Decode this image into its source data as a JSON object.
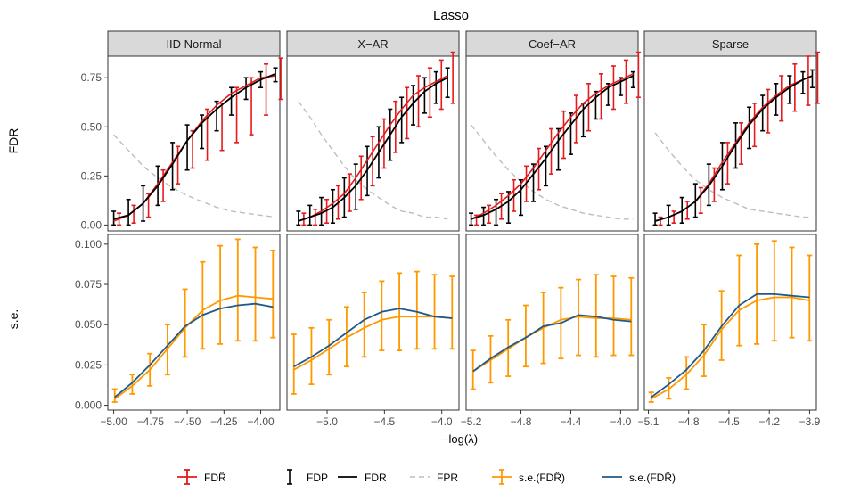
{
  "chart_data": {
    "type": "line",
    "title": "Lasso",
    "xlabel": "−log(λ)",
    "row_labels": [
      "FDR",
      "s.e."
    ],
    "panels": [
      "IID Normal",
      "X−AR",
      "Coef−AR",
      "Sparse"
    ],
    "x_ticks": [
      [
        "−5.00",
        "−4.75",
        "−4.50",
        "−4.25",
        "−4.00"
      ],
      [
        "−5.0",
        "−4.5",
        "−4.0"
      ],
      [
        "−5.2",
        "−4.8",
        "−4.4",
        "−4.0"
      ],
      [
        "−5.1",
        "−4.8",
        "−4.5",
        "−4.2",
        "−3.9"
      ]
    ],
    "y_ticks": {
      "FDR": [
        "0.00",
        "0.25",
        "0.50",
        "0.75"
      ],
      "se": [
        "0.000",
        "0.025",
        "0.050",
        "0.075",
        "0.100"
      ]
    },
    "legend": [
      {
        "key": "fdr_hat",
        "label": "FDR̂",
        "color": "#e41a1c"
      },
      {
        "key": "fdp",
        "label": "FDP",
        "color": "#000000"
      },
      {
        "key": "fdr",
        "label": "FDR",
        "color": "#000000"
      },
      {
        "key": "fpr",
        "label": "FPR",
        "color": "#bdbdbd"
      },
      {
        "key": "se_hat",
        "label": "s.e.(FDR̂)",
        "color": "#ff9900"
      },
      {
        "key": "se_true",
        "label": "s.e.(FDR̂)",
        "color": "#1f5a8a"
      }
    ],
    "data": [
      {
        "xlim": [
          -5.04,
          -3.87
        ],
        "x": [
          -5.0,
          -4.9,
          -4.8,
          -4.7,
          -4.6,
          -4.5,
          -4.4,
          -4.3,
          -4.2,
          -4.1,
          -4.0,
          -3.9
        ],
        "fdr": [
          0.03,
          0.05,
          0.11,
          0.2,
          0.31,
          0.43,
          0.52,
          0.59,
          0.65,
          0.7,
          0.74,
          0.77
        ],
        "fdp_lo": [
          0.0,
          0.0,
          0.02,
          0.1,
          0.18,
          0.28,
          0.39,
          0.48,
          0.56,
          0.64,
          0.7,
          0.73
        ],
        "fdp_hi": [
          0.07,
          0.13,
          0.2,
          0.3,
          0.42,
          0.51,
          0.56,
          0.63,
          0.7,
          0.75,
          0.78,
          0.8
        ],
        "fdr_hat": [
          0.02,
          0.05,
          0.11,
          0.21,
          0.32,
          0.43,
          0.53,
          0.61,
          0.67,
          0.71,
          0.75,
          0.76
        ],
        "fdr_hat_lo": [
          0.0,
          0.01,
          0.04,
          0.12,
          0.21,
          0.29,
          0.33,
          0.38,
          0.42,
          0.46,
          0.56,
          0.64
        ],
        "fdr_hat_hi": [
          0.06,
          0.1,
          0.16,
          0.28,
          0.4,
          0.48,
          0.59,
          0.62,
          0.7,
          0.75,
          0.82,
          0.85
        ],
        "fpr": [
          0.46,
          0.38,
          0.3,
          0.24,
          0.19,
          0.15,
          0.12,
          0.09,
          0.07,
          0.06,
          0.05,
          0.04
        ],
        "se_true": [
          0.005,
          0.014,
          0.025,
          0.037,
          0.049,
          0.056,
          0.06,
          0.062,
          0.063,
          0.061
        ],
        "se_hat": [
          0.004,
          0.012,
          0.022,
          0.035,
          0.048,
          0.059,
          0.065,
          0.068,
          0.067,
          0.066
        ],
        "se_hat_lo": [
          0.002,
          0.007,
          0.012,
          0.019,
          0.03,
          0.035,
          0.038,
          0.04,
          0.04,
          0.042
        ],
        "se_hat_hi": [
          0.01,
          0.019,
          0.032,
          0.05,
          0.072,
          0.089,
          0.099,
          0.103,
          0.098,
          0.096
        ]
      },
      {
        "xlim": [
          -5.35,
          -3.85
        ],
        "x": [
          -5.25,
          -5.15,
          -5.05,
          -4.95,
          -4.85,
          -4.75,
          -4.65,
          -4.55,
          -4.45,
          -4.35,
          -4.25,
          -4.15,
          -4.05,
          -3.95
        ],
        "fdr": [
          0.02,
          0.04,
          0.06,
          0.09,
          0.14,
          0.2,
          0.28,
          0.37,
          0.46,
          0.55,
          0.62,
          0.68,
          0.72,
          0.75
        ],
        "fdp_lo": [
          0.0,
          0.0,
          0.0,
          0.01,
          0.04,
          0.08,
          0.15,
          0.24,
          0.33,
          0.42,
          0.51,
          0.57,
          0.62,
          0.65
        ],
        "fdp_hi": [
          0.07,
          0.1,
          0.14,
          0.18,
          0.24,
          0.31,
          0.4,
          0.5,
          0.59,
          0.65,
          0.71,
          0.75,
          0.78,
          0.8
        ],
        "fdr_hat": [
          0.02,
          0.04,
          0.07,
          0.11,
          0.16,
          0.24,
          0.33,
          0.42,
          0.51,
          0.59,
          0.66,
          0.7,
          0.73,
          0.76
        ],
        "fdr_hat_lo": [
          0.0,
          0.0,
          0.01,
          0.03,
          0.07,
          0.13,
          0.2,
          0.29,
          0.37,
          0.44,
          0.5,
          0.55,
          0.59,
          0.62
        ],
        "fdr_hat_hi": [
          0.06,
          0.08,
          0.13,
          0.2,
          0.26,
          0.35,
          0.45,
          0.54,
          0.63,
          0.7,
          0.76,
          0.8,
          0.84,
          0.88
        ],
        "fpr": [
          0.63,
          0.55,
          0.46,
          0.38,
          0.3,
          0.23,
          0.18,
          0.14,
          0.1,
          0.07,
          0.06,
          0.04,
          0.04,
          0.03
        ],
        "se_true": [
          0.024,
          0.03,
          0.037,
          0.045,
          0.053,
          0.058,
          0.06,
          0.058,
          0.055,
          0.054
        ],
        "se_hat": [
          0.022,
          0.028,
          0.035,
          0.042,
          0.048,
          0.053,
          0.055,
          0.055,
          0.055,
          0.054
        ],
        "se_hat_lo": [
          0.007,
          0.013,
          0.019,
          0.024,
          0.03,
          0.034,
          0.034,
          0.035,
          0.035,
          0.035
        ],
        "se_hat_hi": [
          0.044,
          0.048,
          0.053,
          0.061,
          0.07,
          0.077,
          0.082,
          0.083,
          0.081,
          0.08
        ]
      },
      {
        "xlim": [
          -5.24,
          -3.86
        ],
        "x": [
          -5.2,
          -5.1,
          -5.0,
          -4.9,
          -4.8,
          -4.7,
          -4.6,
          -4.5,
          -4.4,
          -4.3,
          -4.2,
          -4.1,
          -4.0,
          -3.9
        ],
        "fdr": [
          0.03,
          0.05,
          0.08,
          0.12,
          0.18,
          0.26,
          0.34,
          0.43,
          0.51,
          0.59,
          0.65,
          0.7,
          0.73,
          0.76
        ],
        "fdp_lo": [
          0.0,
          0.0,
          0.0,
          0.01,
          0.05,
          0.12,
          0.2,
          0.28,
          0.36,
          0.45,
          0.54,
          0.61,
          0.66,
          0.7
        ],
        "fdp_hi": [
          0.06,
          0.09,
          0.13,
          0.17,
          0.23,
          0.31,
          0.4,
          0.49,
          0.57,
          0.62,
          0.68,
          0.72,
          0.75,
          0.78
        ],
        "fdr_hat": [
          0.03,
          0.06,
          0.1,
          0.15,
          0.21,
          0.29,
          0.38,
          0.47,
          0.55,
          0.62,
          0.67,
          0.71,
          0.74,
          0.77
        ],
        "fdr_hat_lo": [
          0.0,
          0.01,
          0.03,
          0.07,
          0.12,
          0.18,
          0.26,
          0.34,
          0.42,
          0.48,
          0.54,
          0.59,
          0.62,
          0.65
        ],
        "fdr_hat_hi": [
          0.05,
          0.1,
          0.16,
          0.23,
          0.3,
          0.39,
          0.49,
          0.58,
          0.66,
          0.72,
          0.77,
          0.81,
          0.84,
          0.88
        ],
        "fpr": [
          0.51,
          0.43,
          0.35,
          0.28,
          0.22,
          0.17,
          0.13,
          0.1,
          0.08,
          0.06,
          0.05,
          0.04,
          0.03,
          0.03
        ],
        "se_true": [
          0.021,
          0.029,
          0.036,
          0.042,
          0.049,
          0.051,
          0.056,
          0.055,
          0.053,
          0.052
        ],
        "se_hat": [
          0.021,
          0.028,
          0.035,
          0.042,
          0.048,
          0.053,
          0.055,
          0.054,
          0.054,
          0.053
        ],
        "se_hat_lo": [
          0.01,
          0.014,
          0.018,
          0.024,
          0.026,
          0.029,
          0.031,
          0.03,
          0.031,
          0.031
        ],
        "se_hat_hi": [
          0.034,
          0.043,
          0.053,
          0.062,
          0.07,
          0.073,
          0.078,
          0.081,
          0.08,
          0.079
        ]
      },
      {
        "xlim": [
          -5.13,
          -3.85
        ],
        "x": [
          -5.05,
          -4.95,
          -4.85,
          -4.75,
          -4.65,
          -4.55,
          -4.45,
          -4.35,
          -4.25,
          -4.15,
          -4.05,
          -3.95,
          -3.88
        ],
        "fdr": [
          0.02,
          0.04,
          0.07,
          0.12,
          0.2,
          0.3,
          0.41,
          0.51,
          0.59,
          0.65,
          0.7,
          0.74,
          0.76
        ],
        "fdp_lo": [
          0.0,
          0.0,
          0.01,
          0.04,
          0.1,
          0.18,
          0.29,
          0.39,
          0.48,
          0.56,
          0.62,
          0.67,
          0.7
        ],
        "fdp_hi": [
          0.06,
          0.1,
          0.14,
          0.21,
          0.31,
          0.42,
          0.52,
          0.6,
          0.66,
          0.72,
          0.76,
          0.78,
          0.79
        ],
        "fdr_hat": [
          0.02,
          0.04,
          0.07,
          0.12,
          0.21,
          0.32,
          0.42,
          0.52,
          0.6,
          0.66,
          0.71,
          0.74,
          0.76
        ],
        "fdr_hat_lo": [
          0.0,
          0.01,
          0.03,
          0.06,
          0.12,
          0.21,
          0.31,
          0.4,
          0.47,
          0.53,
          0.58,
          0.61,
          0.62
        ],
        "fdr_hat_hi": [
          0.04,
          0.07,
          0.12,
          0.19,
          0.29,
          0.42,
          0.52,
          0.62,
          0.69,
          0.76,
          0.82,
          0.86,
          0.88
        ],
        "fpr": [
          0.47,
          0.38,
          0.3,
          0.23,
          0.18,
          0.14,
          0.11,
          0.08,
          0.07,
          0.06,
          0.05,
          0.04,
          0.04
        ],
        "se_true": [
          0.005,
          0.013,
          0.022,
          0.034,
          0.049,
          0.062,
          0.069,
          0.069,
          0.068,
          0.067
        ],
        "se_hat": [
          0.004,
          0.01,
          0.019,
          0.031,
          0.047,
          0.059,
          0.065,
          0.067,
          0.067,
          0.065
        ],
        "se_hat_lo": [
          0.002,
          0.004,
          0.01,
          0.018,
          0.028,
          0.037,
          0.038,
          0.04,
          0.042,
          0.04
        ],
        "se_hat_hi": [
          0.008,
          0.017,
          0.03,
          0.05,
          0.071,
          0.093,
          0.1,
          0.102,
          0.098,
          0.093
        ]
      }
    ]
  }
}
